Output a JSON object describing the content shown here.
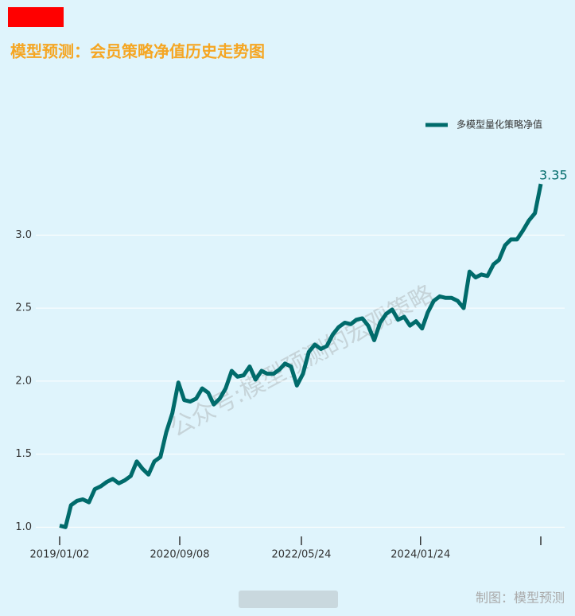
{
  "chart_data": {
    "type": "line",
    "title": "模型预测：会员策略净值历史走势图",
    "watermark": "公众号:模型预测的宏观策略",
    "source": "制图：模型预测",
    "x": [
      "2019/01/02",
      "2019/02/01",
      "2019/03/01",
      "2019/04/01",
      "2019/05/01",
      "2019/06/01",
      "2019/07/01",
      "2019/08/01",
      "2019/09/01",
      "2019/10/01",
      "2019/11/01",
      "2019/12/01",
      "2020/01/01",
      "2020/02/01",
      "2020/03/01",
      "2020/04/01",
      "2020/05/01",
      "2020/06/01",
      "2020/07/01",
      "2020/08/01",
      "2020/09/01",
      "2020/10/01",
      "2020/11/01",
      "2020/12/01",
      "2021/01/01",
      "2021/02/01",
      "2021/03/01",
      "2021/04/01",
      "2021/05/01",
      "2021/06/01",
      "2021/07/01",
      "2021/08/01",
      "2021/09/01",
      "2021/10/01",
      "2021/11/01",
      "2021/12/01",
      "2022/01/01",
      "2022/02/01",
      "2022/03/01",
      "2022/04/01",
      "2022/05/01",
      "2022/06/01",
      "2022/07/01",
      "2022/08/01",
      "2022/09/01",
      "2022/10/01",
      "2022/11/01",
      "2022/12/01",
      "2023/01/01",
      "2023/02/01",
      "2023/03/01",
      "2023/04/01",
      "2023/05/01",
      "2023/06/01",
      "2023/07/01",
      "2023/08/01",
      "2023/09/01",
      "2023/10/01",
      "2023/11/01",
      "2023/12/01",
      "2024/01/01",
      "2024/02/01",
      "2024/03/01",
      "2024/04/01",
      "2024/05/01",
      "2024/06/01",
      "2024/07/01",
      "2024/08/01",
      "2024/09/01",
      "2024/10/01",
      "2024/11/01",
      "2024/12/01",
      "2025/01/01",
      "2025/02/01",
      "2025/03/01",
      "2025/04/01",
      "2025/05/01",
      "2025/06/01",
      "2025/07/01",
      "2025/08/01",
      "2025/09/01",
      "2025/10/01"
    ],
    "series": [
      {
        "name": "多模型量化策略净值",
        "color": "#006b6b",
        "values": [
          1.01,
          1.0,
          1.15,
          1.18,
          1.19,
          1.17,
          1.26,
          1.28,
          1.31,
          1.33,
          1.3,
          1.32,
          1.35,
          1.45,
          1.4,
          1.36,
          1.45,
          1.48,
          1.65,
          1.78,
          1.99,
          1.87,
          1.86,
          1.88,
          1.95,
          1.92,
          1.84,
          1.88,
          1.95,
          2.07,
          2.03,
          2.04,
          2.1,
          2.01,
          2.07,
          2.05,
          2.05,
          2.08,
          2.12,
          2.1,
          1.97,
          2.05,
          2.2,
          2.25,
          2.22,
          2.24,
          2.32,
          2.37,
          2.4,
          2.39,
          2.42,
          2.43,
          2.38,
          2.28,
          2.4,
          2.46,
          2.49,
          2.42,
          2.44,
          2.38,
          2.41,
          2.36,
          2.47,
          2.55,
          2.58,
          2.57,
          2.57,
          2.55,
          2.5,
          2.75,
          2.71,
          2.73,
          2.72,
          2.8,
          2.83,
          2.93,
          2.97,
          2.97,
          3.03,
          3.1,
          3.15,
          3.35
        ]
      }
    ],
    "xlim": [
      "2019/01/02",
      "2025/10/01"
    ],
    "xticks": [
      "2019/01/02",
      "2020/09/08",
      "2022/05/24",
      "2024/01/24"
    ],
    "ylim": [
      0.92,
      3.4
    ],
    "yticks": [
      {
        "value": 1,
        "label": "1.0"
      },
      {
        "value": 1.5,
        "label": "1.5"
      },
      {
        "value": 2,
        "label": "2.0"
      },
      {
        "value": 2.5,
        "label": "2.5"
      },
      {
        "value": 3,
        "label": "3.0"
      }
    ],
    "grid": true,
    "legend": "upper right"
  }
}
